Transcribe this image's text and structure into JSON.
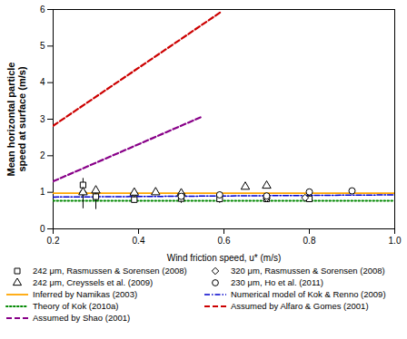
{
  "chart_data": {
    "type": "line",
    "xlabel": "Wind friction speed, u* (m/s)",
    "ylabel": "Mean horizontal particle\nspeed at surface (m/s)",
    "xlim": [
      0.2,
      1.0
    ],
    "ylim": [
      0,
      6
    ],
    "xticks": [
      0.2,
      0.4,
      0.6,
      0.8,
      {
        "value": 1.0,
        "label": "1.0"
      }
    ],
    "yticks": [
      0,
      1,
      2,
      3,
      4,
      5,
      6
    ],
    "grid": false,
    "legend": "bottom",
    "series": [
      {
        "name": "242 μm, Rasmussen & Sorensen (2008)",
        "type": "scatter",
        "marker": "square",
        "color": "black",
        "x": [
          0.27,
          0.3,
          0.39,
          0.5,
          0.59,
          0.7,
          0.8
        ],
        "values": [
          1.2,
          0.88,
          0.8,
          0.83,
          0.82,
          0.82,
          0.82
        ],
        "yerr_lo": [
          0.65,
          0.35,
          0.1,
          0.13,
          0.12,
          0.1,
          0.1
        ],
        "yerr_hi": [
          0.18,
          0.18,
          0.08,
          0.1,
          0.1,
          0.1,
          0.1
        ]
      },
      {
        "name": "320 μm, Rasmussen & Sorensen (2008)",
        "type": "scatter",
        "marker": "diamond",
        "color": "black",
        "x": [
          0.27,
          0.39,
          0.5,
          0.7,
          0.79
        ],
        "values": [
          1.0,
          0.97,
          0.96,
          0.84,
          0.85
        ],
        "yerr": [
          0.08,
          0.07,
          0.07,
          0.07,
          0.07
        ]
      },
      {
        "name": "242 μm, Creyssels et al. (2009)",
        "type": "scatter",
        "marker": "triangle",
        "color": "black",
        "x": [
          0.27,
          0.3,
          0.39,
          0.44,
          0.5,
          0.65,
          0.7
        ],
        "values": [
          1.0,
          1.05,
          0.99,
          1.0,
          0.97,
          1.15,
          1.18
        ]
      },
      {
        "name": "230 μm, Ho et al. (2011)",
        "type": "scatter",
        "marker": "circle",
        "color": "black",
        "x": [
          0.5,
          0.59,
          0.7,
          0.8,
          0.9
        ],
        "values": [
          0.89,
          0.93,
          0.9,
          1.01,
          1.04
        ]
      },
      {
        "name": "Inferred by Namikas (2003)",
        "type": "line",
        "line_style": "solid",
        "color": "#FFA500",
        "x": [
          0.2,
          1.0
        ],
        "values": [
          0.975,
          0.975
        ]
      },
      {
        "name": "Numerical model of Kok & Renno (2009)",
        "type": "line",
        "line_style": "dashdot",
        "color": "#0000CC",
        "x": [
          0.2,
          1.0
        ],
        "values": [
          0.87,
          0.93
        ]
      },
      {
        "name": "Theory of Kok (2010a)",
        "type": "line",
        "line_style": "dotted",
        "color": "#008800",
        "x": [
          0.2,
          1.0
        ],
        "values": [
          0.77,
          0.77
        ]
      },
      {
        "name": "Assumed by Alfaro & Gomes (2001)",
        "type": "line",
        "line_style": "dashed",
        "color": "#CC0000",
        "x": [
          0.2,
          0.595
        ],
        "values": [
          2.82,
          5.95
        ]
      },
      {
        "name": "Assumed by Shao (2001)",
        "type": "line",
        "line_style": "dashed",
        "color": "#880088",
        "x": [
          0.2,
          0.545
        ],
        "values": [
          1.3,
          3.05
        ]
      }
    ]
  }
}
